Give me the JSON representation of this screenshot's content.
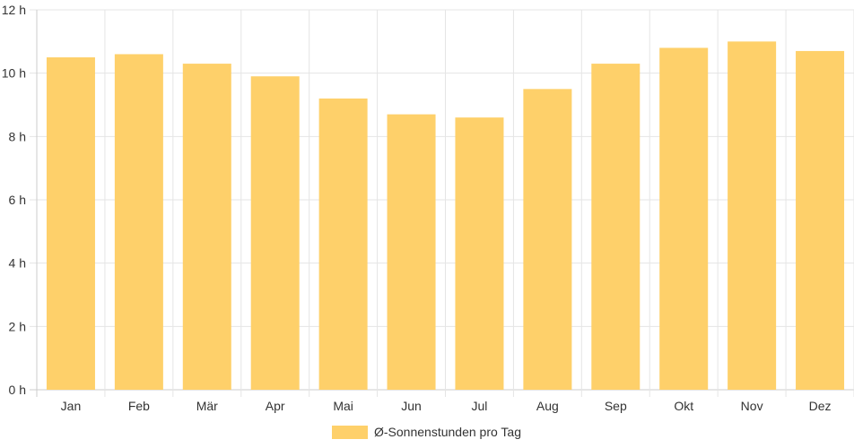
{
  "chart_data": {
    "type": "bar",
    "categories": [
      "Jan",
      "Feb",
      "Mär",
      "Apr",
      "Mai",
      "Jun",
      "Jul",
      "Aug",
      "Sep",
      "Okt",
      "Nov",
      "Dez"
    ],
    "series": [
      {
        "name": "Ø-Sonnenstunden pro Tag",
        "values": [
          10.5,
          10.6,
          10.3,
          9.9,
          9.2,
          8.7,
          8.6,
          9.5,
          10.3,
          10.8,
          11.0,
          10.7
        ]
      }
    ],
    "yticks": [
      "0 h",
      "2 h",
      "4 h",
      "6 h",
      "8 h",
      "10 h",
      "12 h"
    ],
    "ylim": [
      0,
      12
    ],
    "ystep": 2,
    "grid": true,
    "legend_position": "bottom",
    "colors": {
      "bar": "#fed06a",
      "grid": "#e5e5e5",
      "axis": "#cccccc",
      "text": "#333333"
    }
  }
}
